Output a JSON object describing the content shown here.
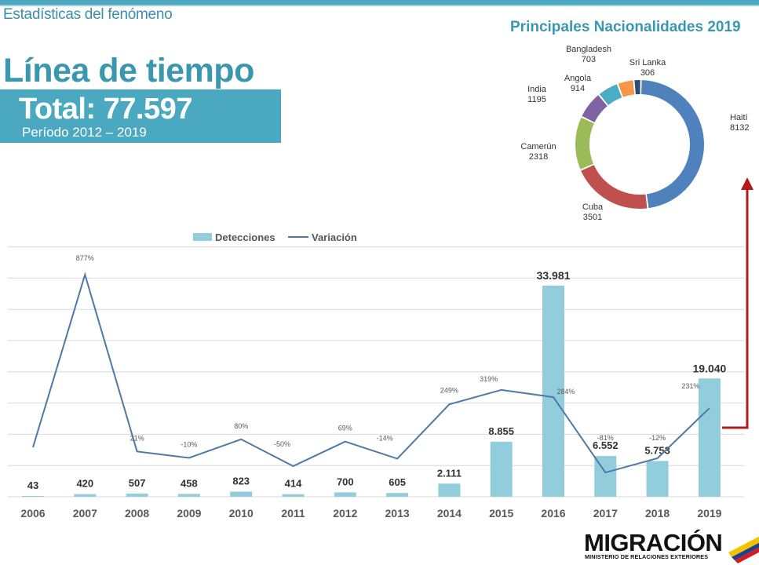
{
  "header": {
    "section_label": "Estadísticas del fenómeno",
    "title": "Línea de tiempo",
    "total_label": "Total: 77.597",
    "period": "Período 2012 – 2019"
  },
  "pie_title": "Principales Nacionalidades 2019",
  "logo": {
    "name": "MIGRACIÓN",
    "subtitle": "MINISTERIO DE RELACIONES EXTERIORES"
  },
  "colors": {
    "accent": "#4aa9c1",
    "bar": "#92cddc",
    "line": "#4f78a6",
    "arrow": "#b31b1b"
  },
  "chart_data": [
    {
      "type": "bar",
      "categories": [
        "2006",
        "2007",
        "2008",
        "2009",
        "2010",
        "2011",
        "2012",
        "2013",
        "2014",
        "2015",
        "2016",
        "2017",
        "2018",
        "2019"
      ],
      "series": [
        {
          "name": "Detecciones",
          "values": [
            43,
            420,
            507,
            458,
            823,
            414,
            700,
            605,
            2111,
            8855,
            33981,
            6552,
            5753,
            19040
          ],
          "labels": [
            "43",
            "420",
            "507",
            "458",
            "823",
            "414",
            "700",
            "605",
            "2.111",
            "8.855",
            "33.981",
            "6.552",
            "5.753",
            "19.040"
          ]
        },
        {
          "name": "Variación",
          "type": "line",
          "values": [
            null,
            877,
            21,
            -10,
            80,
            -50,
            69,
            -14,
            249,
            319,
            284,
            -81,
            -12,
            231
          ],
          "labels": [
            "",
            "877%",
            "21%",
            "-10%",
            "80%",
            "-50%",
            "69%",
            "-14%",
            "249%",
            "319%",
            "284%",
            "-81%",
            "-12%",
            "231%"
          ]
        }
      ],
      "legend": "top",
      "grid": true
    },
    {
      "type": "pie",
      "title": "Principales Nacionalidades 2019",
      "slices": [
        {
          "name": "Haití",
          "value": 8132,
          "color": "#4f81bd"
        },
        {
          "name": "Cuba",
          "value": 3501,
          "color": "#c0504d"
        },
        {
          "name": "Camerún",
          "value": 2318,
          "color": "#9bbb59"
        },
        {
          "name": "India",
          "value": 1195,
          "color": "#8064a2"
        },
        {
          "name": "Angola",
          "value": 914,
          "color": "#4bacc6"
        },
        {
          "name": "Bangladesh",
          "value": 703,
          "color": "#f79646"
        },
        {
          "name": "Sri Lanka",
          "value": 306,
          "color": "#2c4d75"
        }
      ]
    }
  ]
}
